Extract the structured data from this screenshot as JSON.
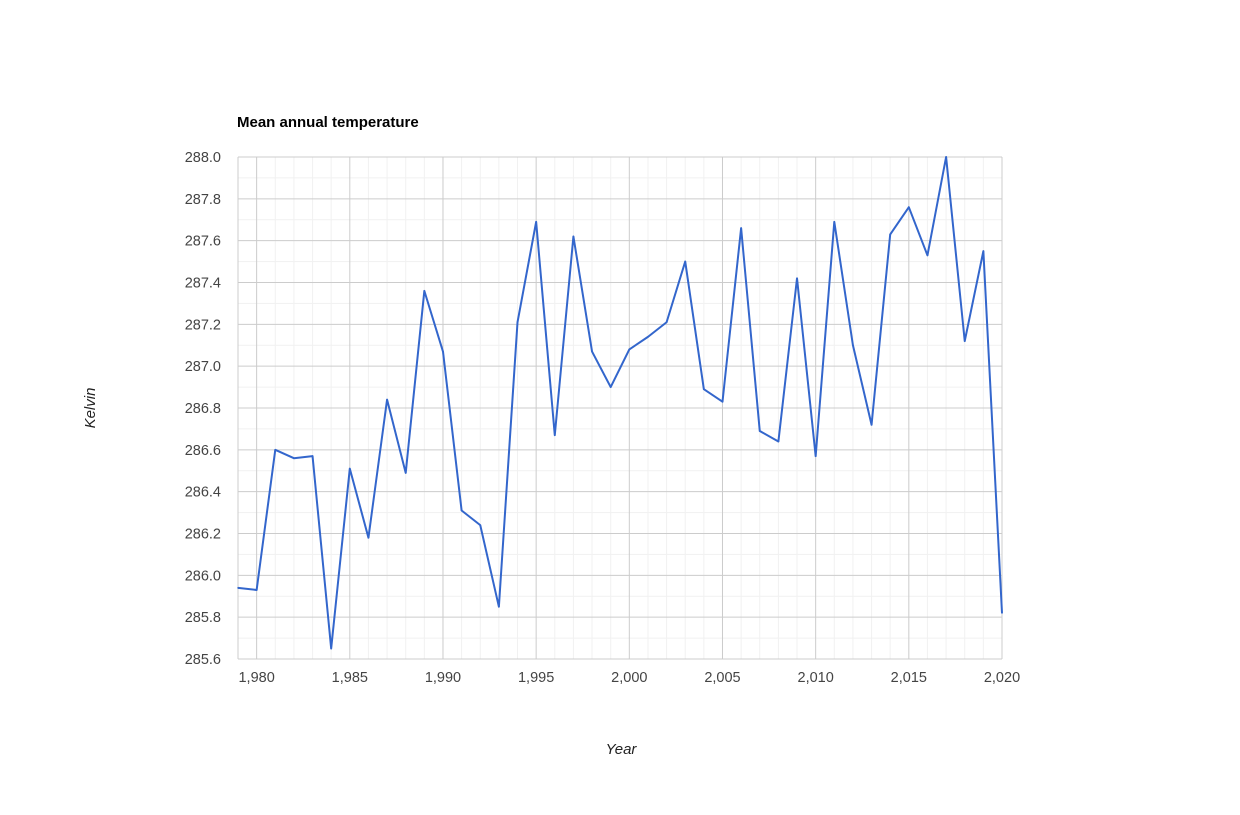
{
  "chart_data": {
    "type": "line",
    "title": "Mean annual temperature",
    "xlabel": "Year",
    "ylabel": "Kelvin",
    "xlim": [
      1979,
      2020
    ],
    "ylim": [
      285.6,
      288.0
    ],
    "x_ticks": [
      1980,
      1985,
      1990,
      1995,
      2000,
      2005,
      2010,
      2015,
      2020
    ],
    "x_tick_labels": [
      "1,980",
      "1,985",
      "1,990",
      "1,995",
      "2,000",
      "2,005",
      "2,010",
      "2,015",
      "2,020"
    ],
    "y_ticks": [
      285.6,
      285.8,
      286.0,
      286.2,
      286.4,
      286.6,
      286.8,
      287.0,
      287.2,
      287.4,
      287.6,
      287.8,
      288.0
    ],
    "y_tick_labels": [
      "285.6",
      "285.8",
      "286.0",
      "286.2",
      "286.4",
      "286.6",
      "286.8",
      "287.0",
      "287.2",
      "287.4",
      "287.6",
      "287.8",
      "288.0"
    ],
    "grid": true,
    "series": [
      {
        "color": "#3366cc",
        "x": [
          1979,
          1980,
          1981,
          1982,
          1983,
          1984,
          1985,
          1986,
          1987,
          1988,
          1989,
          1990,
          1991,
          1992,
          1993,
          1994,
          1995,
          1996,
          1997,
          1998,
          1999,
          2000,
          2001,
          2002,
          2003,
          2004,
          2005,
          2006,
          2007,
          2008,
          2009,
          2010,
          2011,
          2012,
          2013,
          2014,
          2015,
          2016,
          2017,
          2018,
          2019,
          2020
        ],
        "values": [
          285.94,
          285.93,
          286.6,
          286.56,
          286.57,
          285.65,
          286.51,
          286.18,
          286.84,
          286.49,
          287.36,
          287.07,
          286.31,
          286.24,
          285.85,
          287.21,
          287.69,
          286.67,
          287.62,
          287.07,
          286.9,
          287.08,
          287.14,
          287.21,
          287.5,
          286.89,
          286.83,
          287.66,
          286.69,
          286.64,
          287.42,
          286.57,
          287.69,
          287.1,
          286.72,
          287.63,
          287.76,
          287.53,
          288.0,
          287.12,
          287.55,
          285.82
        ]
      }
    ]
  }
}
